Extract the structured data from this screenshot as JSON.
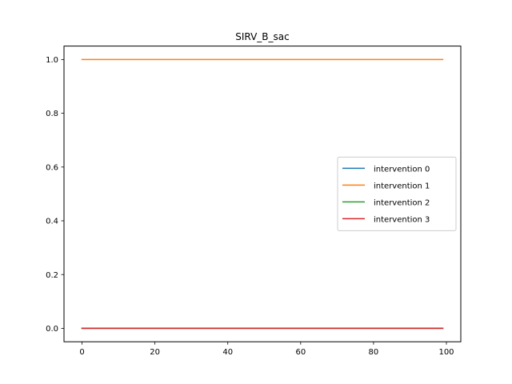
{
  "chart_data": {
    "type": "line",
    "title": "SIRV_B_sac",
    "xlabel": "",
    "ylabel": "",
    "xlim": [
      -4.95,
      103.95
    ],
    "ylim": [
      -0.05,
      1.05
    ],
    "xticks": [
      0,
      20,
      40,
      60,
      80,
      100
    ],
    "yticks": [
      0.0,
      0.2,
      0.4,
      0.6,
      0.8,
      1.0
    ],
    "xtick_labels": [
      "0",
      "20",
      "40",
      "60",
      "80",
      "100"
    ],
    "ytick_labels": [
      "0.0",
      "0.2",
      "0.4",
      "0.6",
      "0.8",
      "1.0"
    ],
    "x_range": [
      0,
      99
    ],
    "grid": false,
    "legend_position": "center-right",
    "series": [
      {
        "name": "intervention 0",
        "color": "#1f77b4",
        "x": [
          0,
          99
        ],
        "y": [
          0.0,
          0.0
        ]
      },
      {
        "name": "intervention 1",
        "color": "#ff7f0e",
        "x": [
          0,
          99
        ],
        "y": [
          1.0,
          1.0
        ]
      },
      {
        "name": "intervention 2",
        "color": "#2ca02c",
        "x": [
          0,
          99
        ],
        "y": [
          0.0,
          0.0
        ]
      },
      {
        "name": "intervention 3",
        "color": "#d62728",
        "x": [
          0,
          99
        ],
        "y": [
          0.0,
          0.0
        ]
      }
    ]
  }
}
